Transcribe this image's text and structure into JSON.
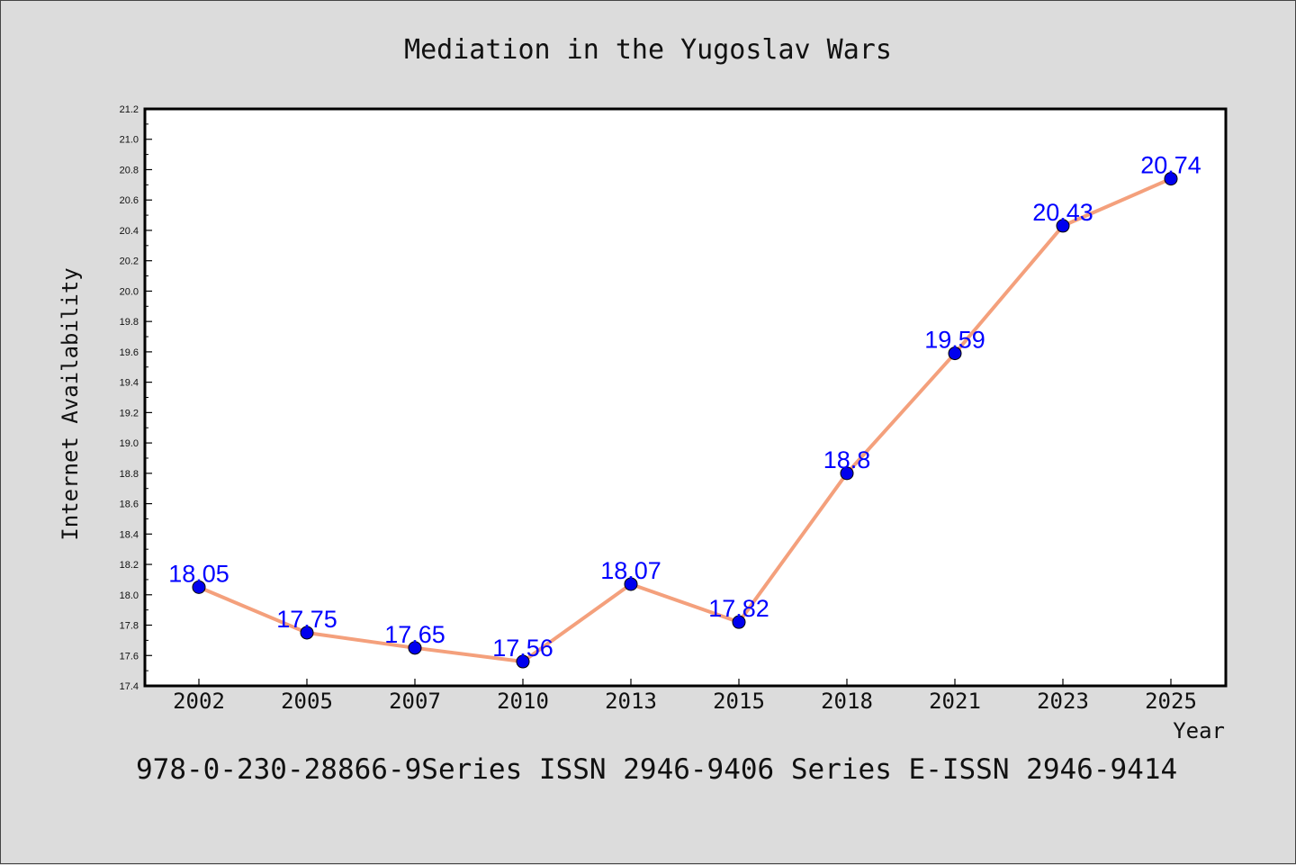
{
  "chart_data": {
    "type": "line",
    "title": "Mediation in the Yugoslav Wars",
    "xlabel": "Year",
    "ylabel": "Internet Availability",
    "categories": [
      "2002",
      "2005",
      "2007",
      "2010",
      "2013",
      "2015",
      "2018",
      "2021",
      "2023",
      "2025"
    ],
    "series": [
      {
        "values": [
          18.05,
          17.75,
          17.65,
          17.56,
          18.07,
          17.82,
          18.8,
          19.59,
          20.43,
          20.74
        ],
        "data_labels": [
          "18.05",
          "17.75",
          "17.65",
          "17.56",
          "18.07",
          "17.82",
          "18.8",
          "19.59",
          "20.43",
          "20.74"
        ],
        "line_color": "#f4a07c",
        "marker_color": "#0000ee",
        "label_color": "#0000ff"
      }
    ],
    "ylim": [
      17.4,
      21.2
    ],
    "yticks": [
      "17.4",
      "17.6",
      "17.8",
      "18.0",
      "18.2",
      "18.4",
      "18.6",
      "18.8",
      "19.0",
      "19.2",
      "19.4",
      "19.6",
      "19.8",
      "20.0",
      "20.2",
      "20.4",
      "20.6",
      "20.8",
      "21.0",
      "21.2"
    ],
    "grid": false,
    "legend": "none"
  },
  "footer": "978-0-230-28866-9Series ISSN 2946-9406 Series E-ISSN 2946-9414",
  "colors": {
    "background": "#dcdcdc",
    "plot_background": "#ffffff",
    "axis": "#000000"
  }
}
